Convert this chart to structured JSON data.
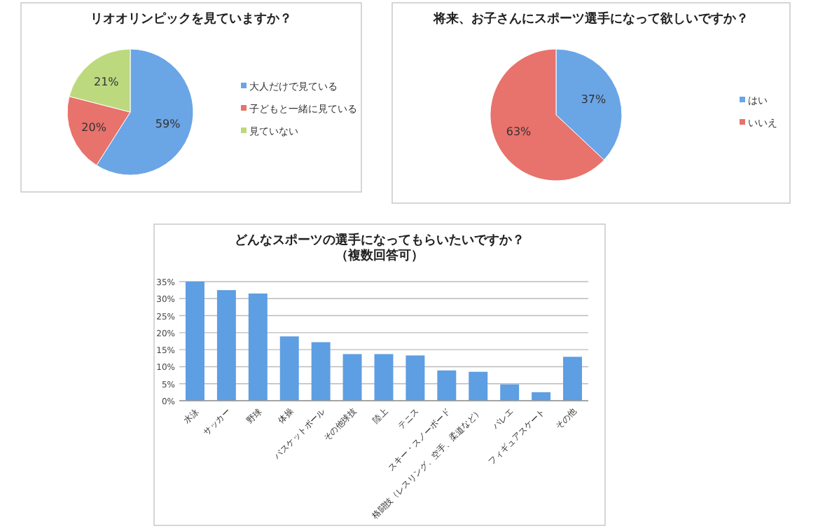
{
  "chart_data": [
    {
      "type": "pie",
      "title": "リオオリンピックを見ていますか？",
      "categories": [
        "大人だけで見ている",
        "子どもと一緒に見ている",
        "見ていない"
      ],
      "values": [
        59,
        20,
        21
      ],
      "value_labels": [
        "59%",
        "20%",
        "21%"
      ],
      "colors": [
        "#6aa5e6",
        "#e8726c",
        "#bcd97e"
      ],
      "legend": "right"
    },
    {
      "type": "pie",
      "title": "将来、お子さんにスポーツ選手になって欲しいですか？",
      "categories": [
        "はい",
        "いいえ"
      ],
      "values": [
        37,
        63
      ],
      "value_labels": [
        "37%",
        "63%"
      ],
      "colors": [
        "#6aa5e6",
        "#e8726c"
      ],
      "legend": "right"
    },
    {
      "type": "bar",
      "title": "どんなスポーツの選手になってもらいたいですか？",
      "subtitle": "（複数回答可）",
      "categories": [
        "水泳",
        "サッカー",
        "野球",
        "体操",
        "バスケットボール",
        "その他球技",
        "陸上",
        "テニス",
        "スキー・スノーボード",
        "格闘技（レスリング、空手、柔道など）",
        "バレエ",
        "フィギュアスケート",
        "その他"
      ],
      "values": [
        35,
        32.5,
        31.5,
        18.9,
        17.2,
        13.7,
        13.7,
        13.3,
        8.9,
        8.5,
        4.8,
        2.5,
        12.9
      ],
      "color": "#5e9ee2",
      "ylim": [
        0,
        35
      ],
      "yticks": [
        {
          "value": 0,
          "label": "0%"
        },
        {
          "value": 5,
          "label": "5%"
        },
        {
          "value": 10,
          "label": "10%"
        },
        {
          "value": 15,
          "label": "15%"
        },
        {
          "value": 20,
          "label": "20%"
        },
        {
          "value": 25,
          "label": "25%"
        },
        {
          "value": 30,
          "label": "30%"
        },
        {
          "value": 35,
          "label": "35%"
        }
      ],
      "grid": "y"
    }
  ]
}
